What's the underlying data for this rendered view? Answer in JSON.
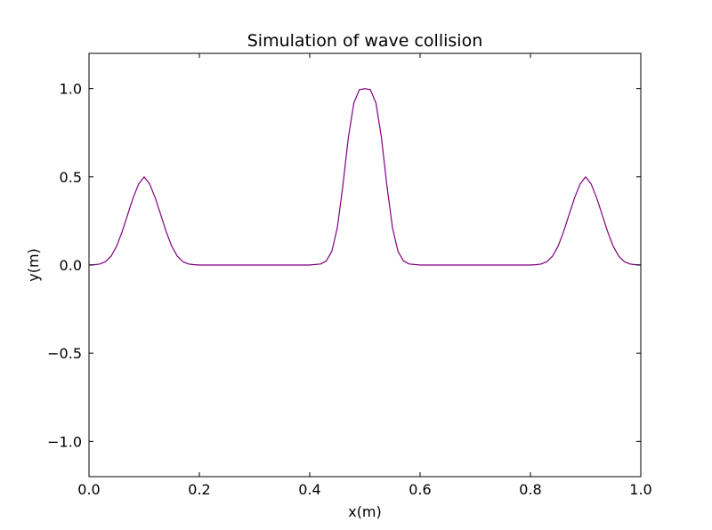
{
  "chart_data": {
    "type": "line",
    "title": "Simulation of wave collision",
    "xlabel": "x(m)",
    "ylabel": "y(m)",
    "xlim": [
      0.0,
      1.0
    ],
    "ylim": [
      -1.2,
      1.2
    ],
    "xticks": [
      0.0,
      0.2,
      0.4,
      0.6,
      0.8,
      1.0
    ],
    "xtick_labels": [
      "0.0",
      "0.2",
      "0.4",
      "0.6",
      "0.8",
      "1.0"
    ],
    "yticks": [
      -1.0,
      -0.5,
      0.0,
      0.5,
      1.0
    ],
    "ytick_labels": [
      "−1.0",
      "−0.5",
      "0.0",
      "0.5",
      "1.0"
    ],
    "grid": false,
    "legend": "none",
    "series": [
      {
        "color": "#800080",
        "x": [
          0.0,
          0.01,
          0.02,
          0.03,
          0.04,
          0.05,
          0.06,
          0.07,
          0.08,
          0.09,
          0.1,
          0.11,
          0.12,
          0.13,
          0.14,
          0.15,
          0.16,
          0.17,
          0.18,
          0.19,
          0.2,
          0.25,
          0.3,
          0.35,
          0.4,
          0.42,
          0.43,
          0.44,
          0.45,
          0.46,
          0.47,
          0.48,
          0.49,
          0.5,
          0.51,
          0.52,
          0.53,
          0.54,
          0.55,
          0.56,
          0.57,
          0.58,
          0.6,
          0.65,
          0.7,
          0.75,
          0.8,
          0.81,
          0.82,
          0.83,
          0.84,
          0.85,
          0.86,
          0.87,
          0.88,
          0.89,
          0.9,
          0.91,
          0.92,
          0.93,
          0.94,
          0.95,
          0.96,
          0.97,
          0.98,
          0.99,
          1.0
        ],
        "y": [
          0.0,
          0.002,
          0.006,
          0.019,
          0.05,
          0.106,
          0.188,
          0.285,
          0.381,
          0.459,
          0.5,
          0.459,
          0.381,
          0.285,
          0.188,
          0.106,
          0.05,
          0.019,
          0.006,
          0.002,
          0.0,
          0.0,
          0.0,
          0.0,
          0.0,
          0.006,
          0.023,
          0.077,
          0.211,
          0.448,
          0.722,
          0.919,
          0.994,
          1.0,
          0.994,
          0.919,
          0.722,
          0.448,
          0.211,
          0.077,
          0.023,
          0.006,
          0.0,
          0.0,
          0.0,
          0.0,
          0.0,
          0.002,
          0.006,
          0.019,
          0.05,
          0.106,
          0.188,
          0.285,
          0.381,
          0.459,
          0.5,
          0.459,
          0.381,
          0.285,
          0.188,
          0.106,
          0.05,
          0.019,
          0.006,
          0.002,
          0.0
        ]
      }
    ]
  }
}
